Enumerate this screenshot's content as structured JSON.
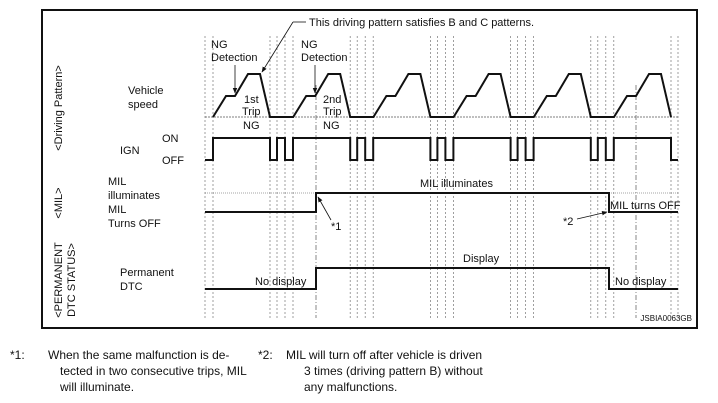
{
  "diagram": {
    "callout": "This driving pattern satisfies B and C patterns.",
    "sections": {
      "driving_pattern": "<Driving Pattern>",
      "mil": "<MIL>",
      "dtc_line1": "<PERMANENT",
      "dtc_line2": "DTC STATUS>"
    },
    "labels": {
      "vehicle_speed_1": "Vehicle",
      "vehicle_speed_2": "speed",
      "ign": "IGN",
      "on": "ON",
      "off": "OFF",
      "mil_ill_1": "MIL",
      "mil_ill_2": "illuminates",
      "mil_off_1": "MIL",
      "mil_off_2": "Turns OFF",
      "perm_1": "Permanent",
      "perm_2": "DTC"
    },
    "annotations": {
      "ng_det_1a": "NG",
      "ng_det_1b": "Detection",
      "ng_det_2a": "NG",
      "ng_det_2b": "Detection",
      "trip1_a": "1st",
      "trip1_b": "Trip",
      "trip1_ng": "NG",
      "trip2_a": "2nd",
      "trip2_b": "Trip",
      "trip2_ng": "NG",
      "mil_illuminates": "MIL illuminates",
      "mil_turns_off": "MIL turns OFF",
      "ref1": "*1",
      "ref2": "*2",
      "display": "Display",
      "no_display_1": "No display",
      "no_display_2": "No display"
    },
    "code": "JSBIA0063GB",
    "trips": 6
  },
  "notes": [
    {
      "mark": "*1:",
      "lines": [
        "When the same malfunction is de-",
        "tected in two consecutive trips, MIL",
        "will illuminate."
      ]
    },
    {
      "mark": "*2:",
      "lines": [
        "MIL will turn off after vehicle is driven",
        "3 times (driving pattern B) without",
        "any malfunctions."
      ]
    }
  ]
}
